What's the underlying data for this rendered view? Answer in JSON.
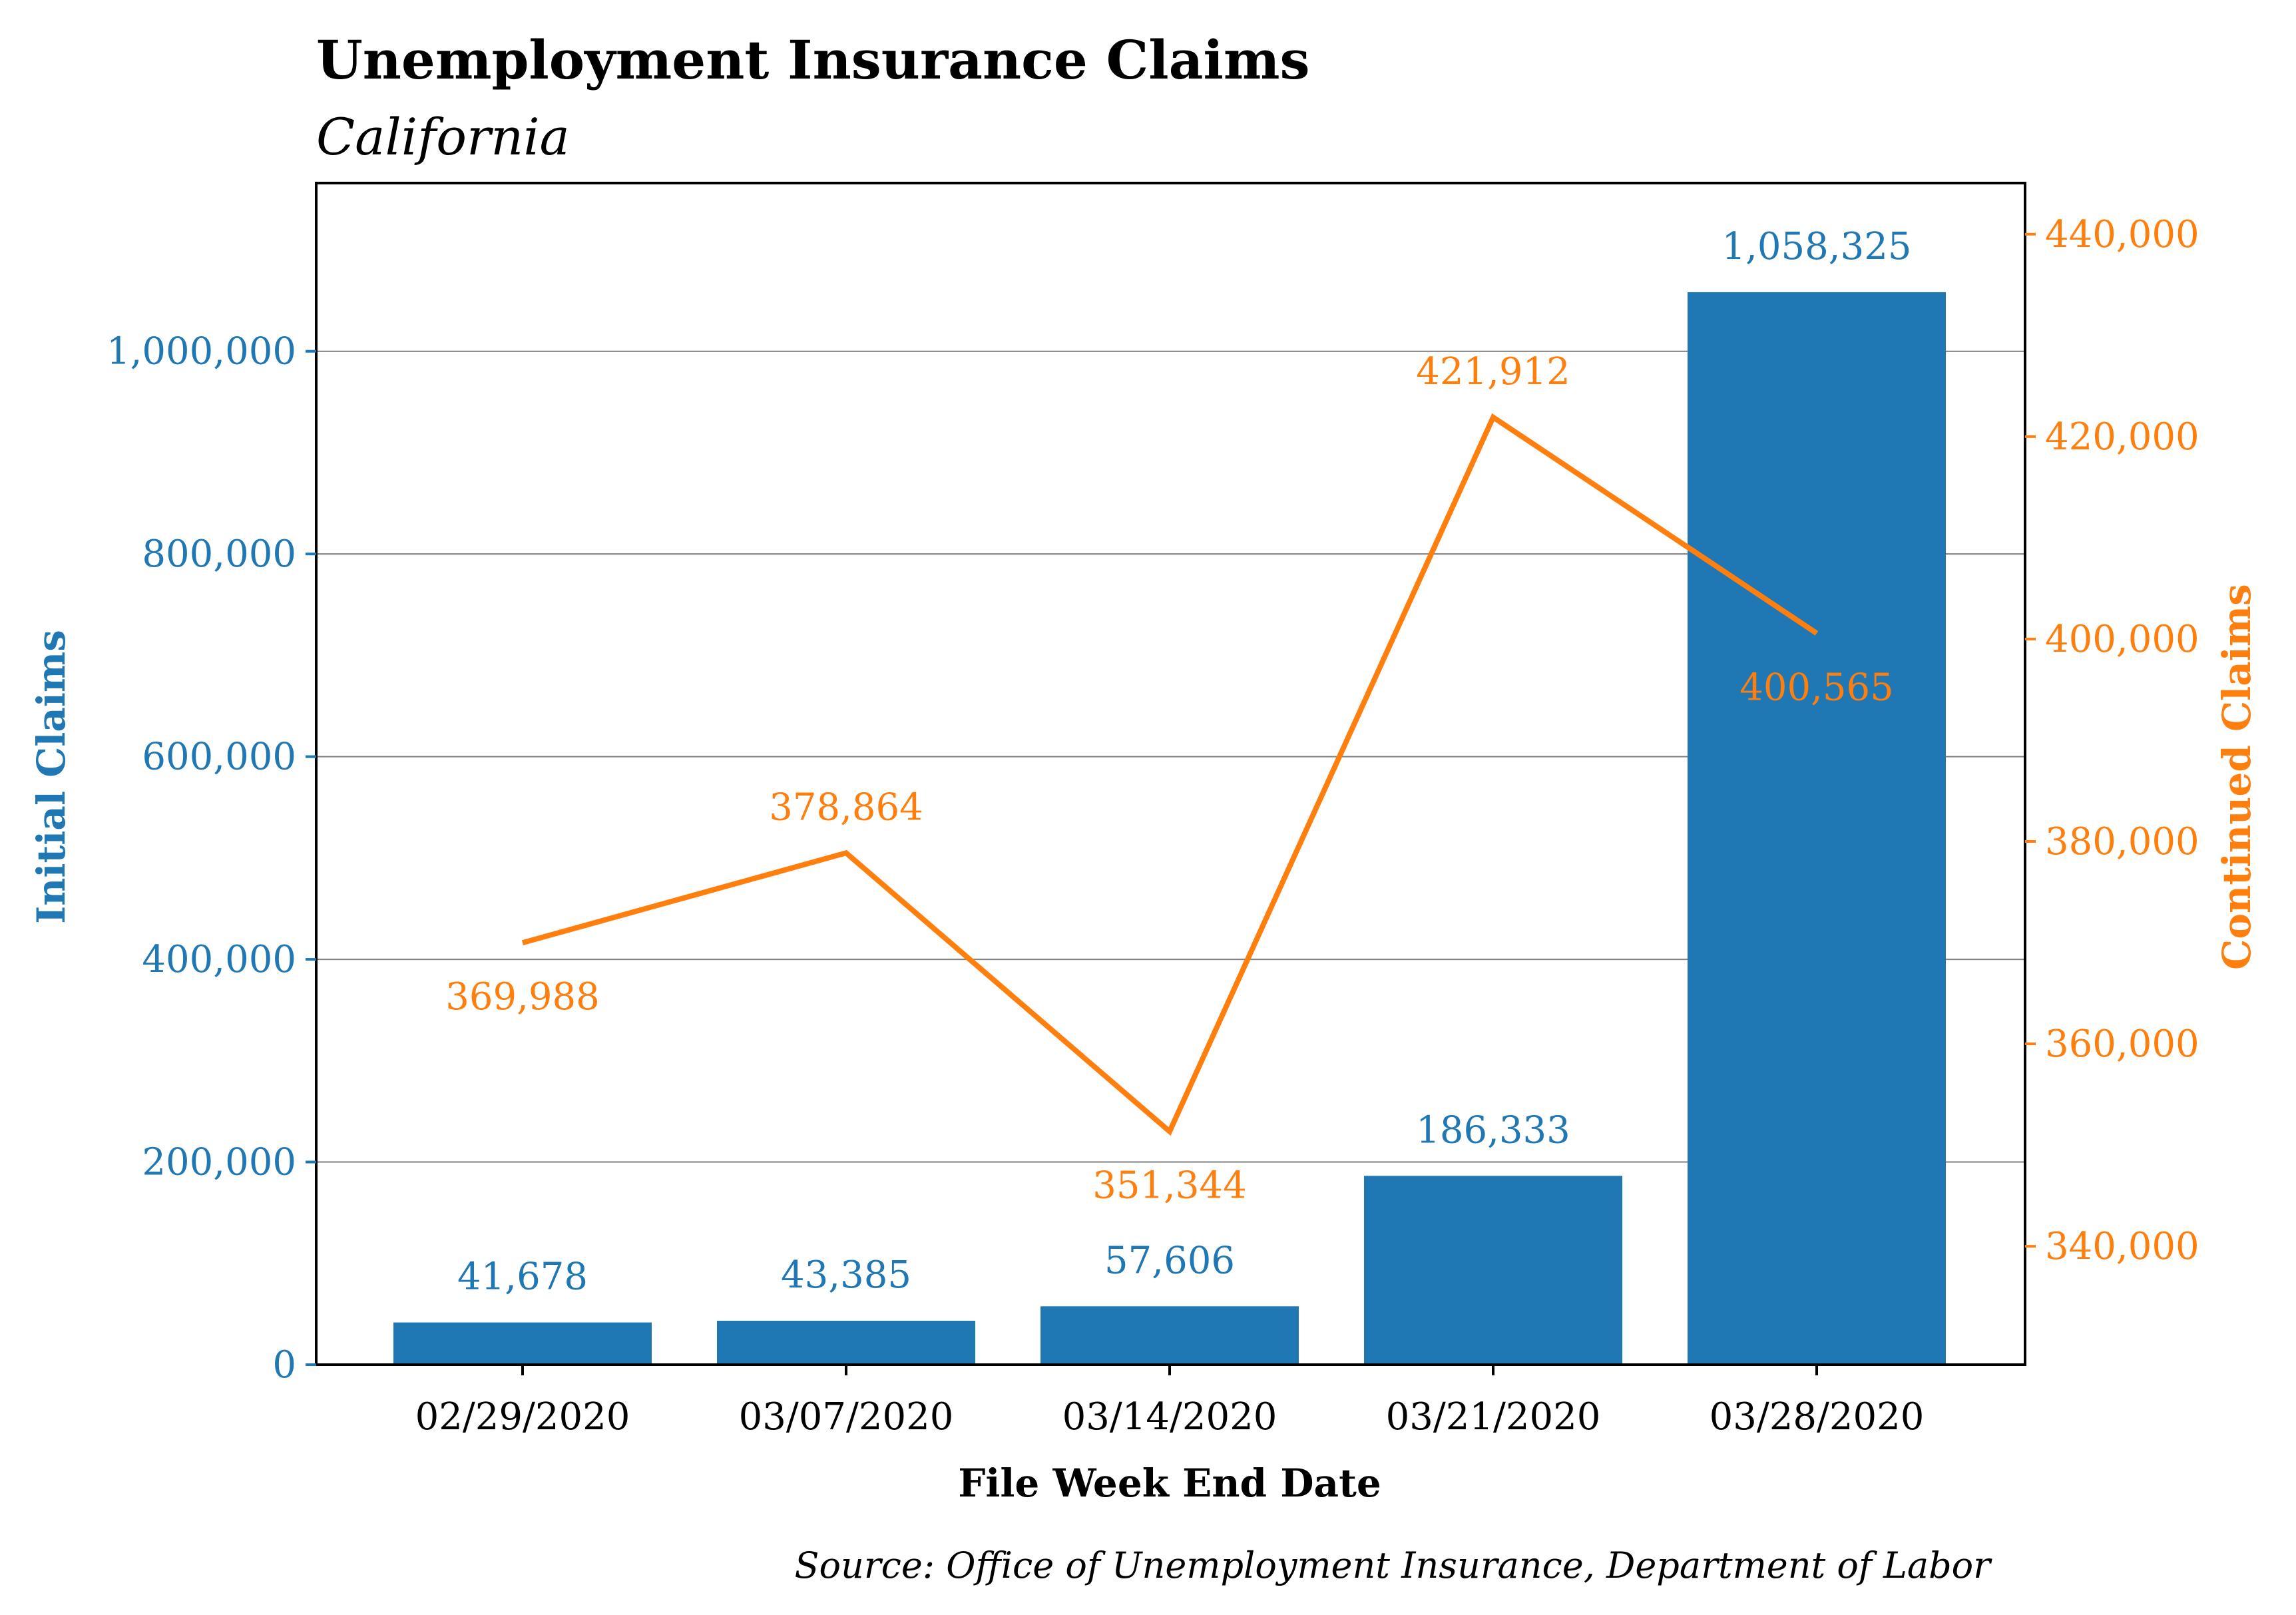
{
  "chart_data": {
    "type": "bar+line",
    "title": "Unemployment Insurance Claims",
    "subtitle": "California",
    "xlabel": "File Week End Date",
    "ylabel_left": "Initial Claims",
    "ylabel_right": "Continued Claims",
    "source": "Source: Office of Unemployment Insurance, Department of Labor",
    "categories": [
      "02/29/2020",
      "03/07/2020",
      "03/14/2020",
      "03/21/2020",
      "03/28/2020"
    ],
    "series": [
      {
        "name": "Initial Claims",
        "kind": "bar",
        "axis": "left",
        "color": "#1f77b4",
        "values": [
          41678,
          43385,
          57606,
          186333,
          1058325
        ],
        "labels": [
          "41,678",
          "43,385",
          "57,606",
          "186,333",
          "1,058,325"
        ]
      },
      {
        "name": "Continued Claims",
        "kind": "line",
        "axis": "right",
        "color": "#ff7f0e",
        "values": [
          369988,
          378864,
          351344,
          421912,
          400565
        ],
        "labels": [
          "369,988",
          "378,864",
          "351,344",
          "421,912",
          "400,565"
        ],
        "label_position": [
          "below",
          "above",
          "below",
          "above",
          "below"
        ]
      }
    ],
    "left_axis": {
      "ylim": [
        0,
        1166000
      ],
      "ticks": [
        0,
        200000,
        400000,
        600000,
        800000,
        1000000
      ],
      "tick_labels": [
        "0",
        "200,000",
        "400,000",
        "600,000",
        "800,000",
        "1,000,000"
      ],
      "color": "#1f77b4"
    },
    "right_axis": {
      "ylim": [
        328300,
        445050
      ],
      "ticks": [
        340000,
        360000,
        380000,
        400000,
        420000,
        440000
      ],
      "tick_labels": [
        "340,000",
        "360,000",
        "380,000",
        "400,000",
        "420,000",
        "440,000"
      ],
      "color": "#ff7f0e"
    },
    "grid": "horizontal (left axis)"
  }
}
